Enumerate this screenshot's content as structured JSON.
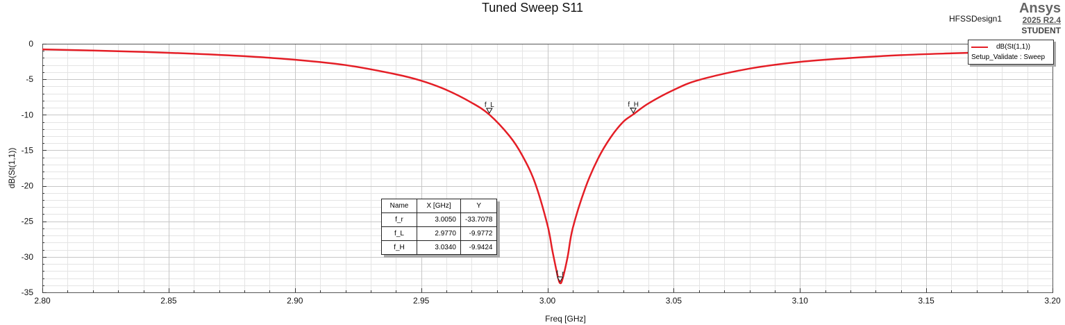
{
  "brand": {
    "name": "Ansys",
    "version": "2025 R2.4",
    "edition": "STUDENT"
  },
  "design_name": "HFSSDesign1",
  "chart_data": {
    "type": "line",
    "title": "Tuned Sweep S11",
    "xlabel": "Freq [GHz]",
    "ylabel": "dB(St(1,1))",
    "xlim": [
      2.8,
      3.2
    ],
    "ylim": [
      -35,
      0
    ],
    "x_ticks": [
      2.8,
      2.85,
      2.9,
      2.95,
      3.0,
      3.05,
      3.1,
      3.15,
      3.2
    ],
    "x_tick_labels": [
      "2.80",
      "2.85",
      "2.90",
      "2.95",
      "3.00",
      "3.05",
      "3.10",
      "3.15",
      "3.20"
    ],
    "y_ticks": [
      0,
      -5,
      -10,
      -15,
      -20,
      -25,
      -30,
      -35
    ],
    "y_tick_labels": [
      "0",
      "-5",
      "-10",
      "-15",
      "-20",
      "-25",
      "-30",
      "-35"
    ],
    "grid": true,
    "legend_position": "top-right",
    "series": [
      {
        "name": "dB(St(1,1))",
        "setup": "Setup_Validate : Sweep",
        "color": "#e41e26",
        "x": [
          2.8,
          2.82,
          2.84,
          2.86,
          2.88,
          2.9,
          2.92,
          2.94,
          2.95,
          2.96,
          2.97,
          2.977,
          2.985,
          2.99,
          2.995,
          3.0,
          3.002,
          3.004,
          3.005,
          3.006,
          3.008,
          3.01,
          3.015,
          3.02,
          3.025,
          3.03,
          3.034,
          3.04,
          3.05,
          3.06,
          3.08,
          3.1,
          3.12,
          3.14,
          3.16,
          3.18,
          3.2
        ],
        "y": [
          -0.8,
          -0.95,
          -1.15,
          -1.4,
          -1.75,
          -2.25,
          -3.0,
          -4.3,
          -5.2,
          -6.5,
          -8.3,
          -9.98,
          -13.0,
          -15.7,
          -19.5,
          -25.5,
          -29.2,
          -32.6,
          -33.7,
          -33.1,
          -30.0,
          -26.0,
          -20.3,
          -16.2,
          -13.2,
          -11.0,
          -9.94,
          -8.4,
          -6.5,
          -5.1,
          -3.5,
          -2.55,
          -2.0,
          -1.6,
          -1.35,
          -1.15,
          -1.0
        ]
      }
    ],
    "markers": [
      {
        "name": "f_r",
        "x": 3.005,
        "y": -33.7078
      },
      {
        "name": "f_L",
        "x": 2.977,
        "y": -9.9772
      },
      {
        "name": "f_H",
        "x": 3.034,
        "y": -9.9424
      }
    ],
    "marker_table": {
      "headers": [
        "Name",
        "X [GHz]",
        "Y"
      ],
      "rows": [
        [
          "f_r",
          "3.0050",
          "-33.7078"
        ],
        [
          "f_L",
          "2.9770",
          "-9.9772"
        ],
        [
          "f_H",
          "3.0340",
          "-9.9424"
        ]
      ]
    }
  }
}
